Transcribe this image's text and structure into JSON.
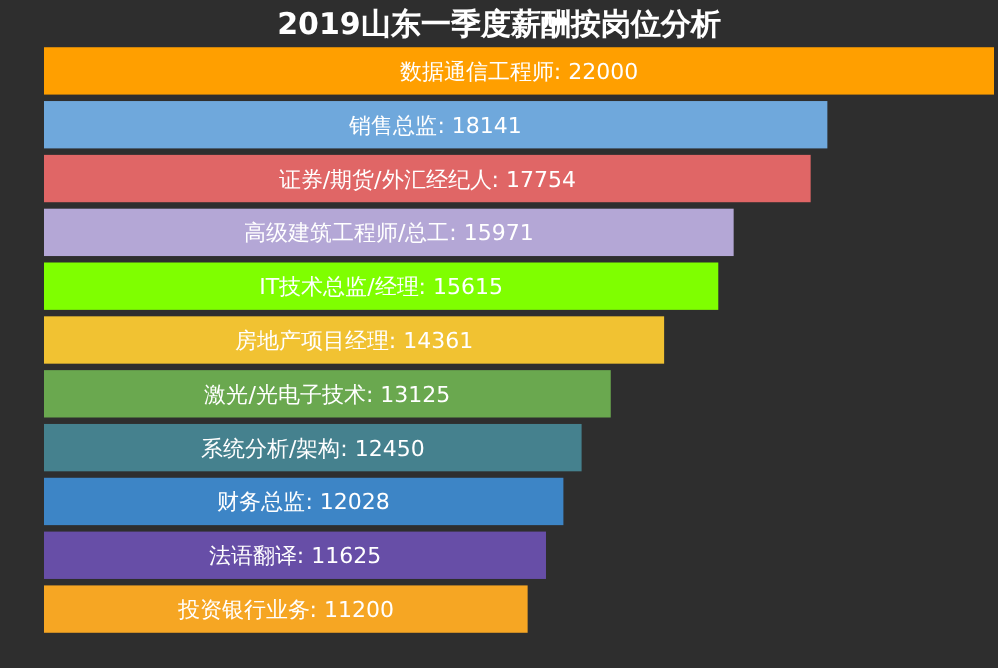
{
  "chart_data": {
    "type": "bar",
    "orientation": "horizontal",
    "title": "2019山东一季度薪酬按岗位分析",
    "categories": [
      null,
      null,
      null,
      null,
      null,
      null,
      null,
      null,
      null,
      null,
      null
    ],
    "values": [
      22000,
      18141,
      17754,
      15971,
      15615,
      14361,
      13125,
      12450,
      12028,
      11625,
      11200
    ],
    "value_labels": [
      "数据通信工程师: 22000",
      "销售总监: 18141",
      "证券/期货/外汇经纪人: 17754",
      "高级建筑工程师/总工: 15971",
      "IT技术总监/经理: 15615",
      "房地产项目经理: 14361",
      "激光/光电子技术: 13125",
      "系统分析/架构: 12450",
      "财务总监: 12028",
      "法语翻译: 11625",
      "投资银行业务: 11200"
    ],
    "colors": [
      "#ff9f00",
      "#6fa8dc",
      "#e06666",
      "#b4a7d6",
      "#7fff00",
      "#f1c232",
      "#6aa84f",
      "#45818e",
      "#3d85c6",
      "#674ea7",
      "#f6a623"
    ]
  }
}
